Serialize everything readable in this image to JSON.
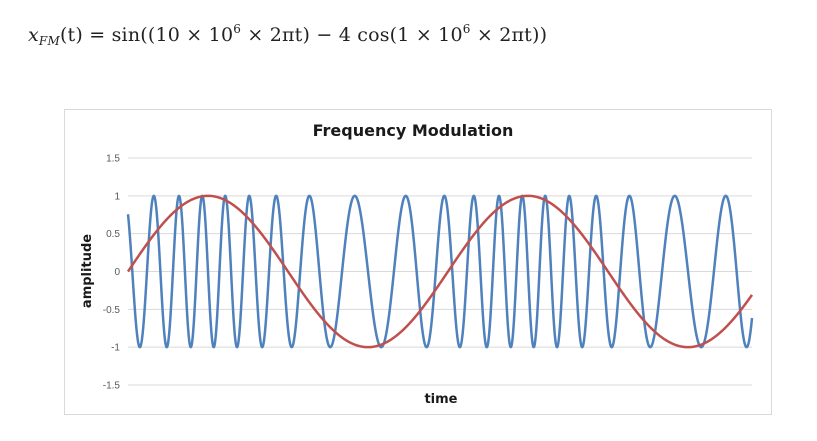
{
  "formula": {
    "lhs_var": "x",
    "lhs_sub": "FM",
    "lhs_arg": "(t) = sin((10 × 10",
    "exp1": "6",
    "mid": " × 2πt) − 4 cos(1 × 10",
    "exp2": "6",
    "end": " × 2πt))"
  },
  "chart_data": {
    "type": "line",
    "title": "Frequency Modulation",
    "xlabel": "time",
    "ylabel": "amplitude",
    "ylim": [
      -1.5,
      1.5
    ],
    "yticks": [
      "1.5",
      "1",
      "0.5",
      "0",
      "-0.5",
      "-1",
      "-1.5"
    ],
    "grid": true,
    "legend": "none",
    "series": [
      {
        "function": "sin(2π·10·t − 4·cos(2π·t))",
        "t_range": [
          0,
          1.95
        ],
        "color": "#4f81bd"
      },
      {
        "function": "sin(2π·t)",
        "t_range": [
          0,
          1.95
        ],
        "color": "#c0504d"
      }
    ]
  }
}
